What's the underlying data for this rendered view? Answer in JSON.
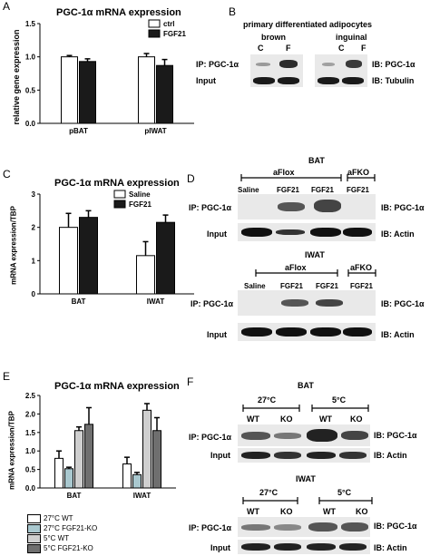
{
  "panel_a": {
    "letter": "A",
    "title": "PGC-1α mRNA expression",
    "ylabel": "relative gene expression",
    "legend": [
      "ctrl",
      "FGF21"
    ],
    "colors": [
      "#ffffff",
      "#1a1a1a"
    ],
    "categories": [
      "pBAT",
      "pIWAT"
    ],
    "ticks": [
      "0.0",
      "0.5",
      "1.0",
      "1.5"
    ],
    "values": [
      [
        1.0,
        1.0
      ],
      [
        0.93,
        0.87
      ]
    ],
    "errors": [
      [
        0.02,
        0.05
      ],
      [
        0.04,
        0.09
      ]
    ],
    "ylim": [
      0,
      1.5
    ]
  },
  "panel_b": {
    "letter": "B",
    "header": "primary differentiated adipocytes",
    "group_brown": "brown",
    "group_inguinal": "inguinal",
    "c1": "C",
    "f1": "F",
    "c2": "C",
    "f2": "F",
    "ip_left": "IP: PGC-1α",
    "input_left": "Input",
    "ib_right": "IB: PGC-1α",
    "ib_tub": "IB: Tubulin"
  },
  "panel_c": {
    "letter": "C",
    "title": "PGC-1α mRNA expression",
    "ylabel": "mRNA expression/TBP",
    "legend": [
      "Saline",
      "FGF21"
    ],
    "colors": [
      "#ffffff",
      "#1a1a1a"
    ],
    "categories": [
      "BAT",
      "IWAT"
    ],
    "ticks": [
      "0",
      "1",
      "2",
      "3"
    ],
    "values": [
      [
        2.0,
        1.15
      ],
      [
        2.3,
        2.15
      ]
    ],
    "errors": [
      [
        0.42,
        0.42
      ],
      [
        0.2,
        0.22
      ]
    ],
    "ylim": [
      0,
      3
    ]
  },
  "panel_d": {
    "letter": "D",
    "bat_title": "BAT",
    "iwat_title": "IWAT",
    "aflox": "aFlox",
    "afko": "aFKO",
    "lanes": [
      "Saline",
      "FGF21",
      "FGF21",
      "FGF21"
    ],
    "ip": "IP: PGC-1α",
    "input": "Input",
    "ib_pgc": "IB: PGC-1α",
    "ib_actin": "IB: Actin"
  },
  "panel_e": {
    "letter": "E",
    "title": "PGC-1α mRNA expression",
    "ylabel": "mRNA expression/TBP",
    "categories": [
      "BAT",
      "IWAT"
    ],
    "ticks": [
      "0.0",
      "0.5",
      "1.0",
      "1.5",
      "2.0",
      "2.5"
    ],
    "series": [
      {
        "name": "27°C WT",
        "values": [
          0.8,
          0.65
        ],
        "errors": [
          0.2,
          0.18
        ]
      },
      {
        "name": "27°C FGF21-KO",
        "values": [
          0.52,
          0.36
        ],
        "errors": [
          0.04,
          0.06
        ]
      },
      {
        "name": "5°C WT",
        "values": [
          1.55,
          2.1
        ],
        "errors": [
          0.1,
          0.18
        ]
      },
      {
        "name": "5°C FGF21-KO",
        "values": [
          1.72,
          1.55
        ],
        "errors": [
          0.45,
          0.35
        ]
      }
    ],
    "colors": [
      "#ffffff",
      "#a9c8cf",
      "#cfcfcf",
      "#6f6f6f"
    ],
    "ylim": [
      0,
      2.5
    ]
  },
  "panel_f": {
    "letter": "F",
    "bat_title": "BAT",
    "iwat_title": "IWAT",
    "temp_27": "27°C",
    "temp_5": "5°C",
    "wt": "WT",
    "ko": "KO",
    "ip": "IP: PGC-1α",
    "input": "Input",
    "ib_pgc": "IB: PGC-1α",
    "ib_actin": "IB: Actin"
  }
}
